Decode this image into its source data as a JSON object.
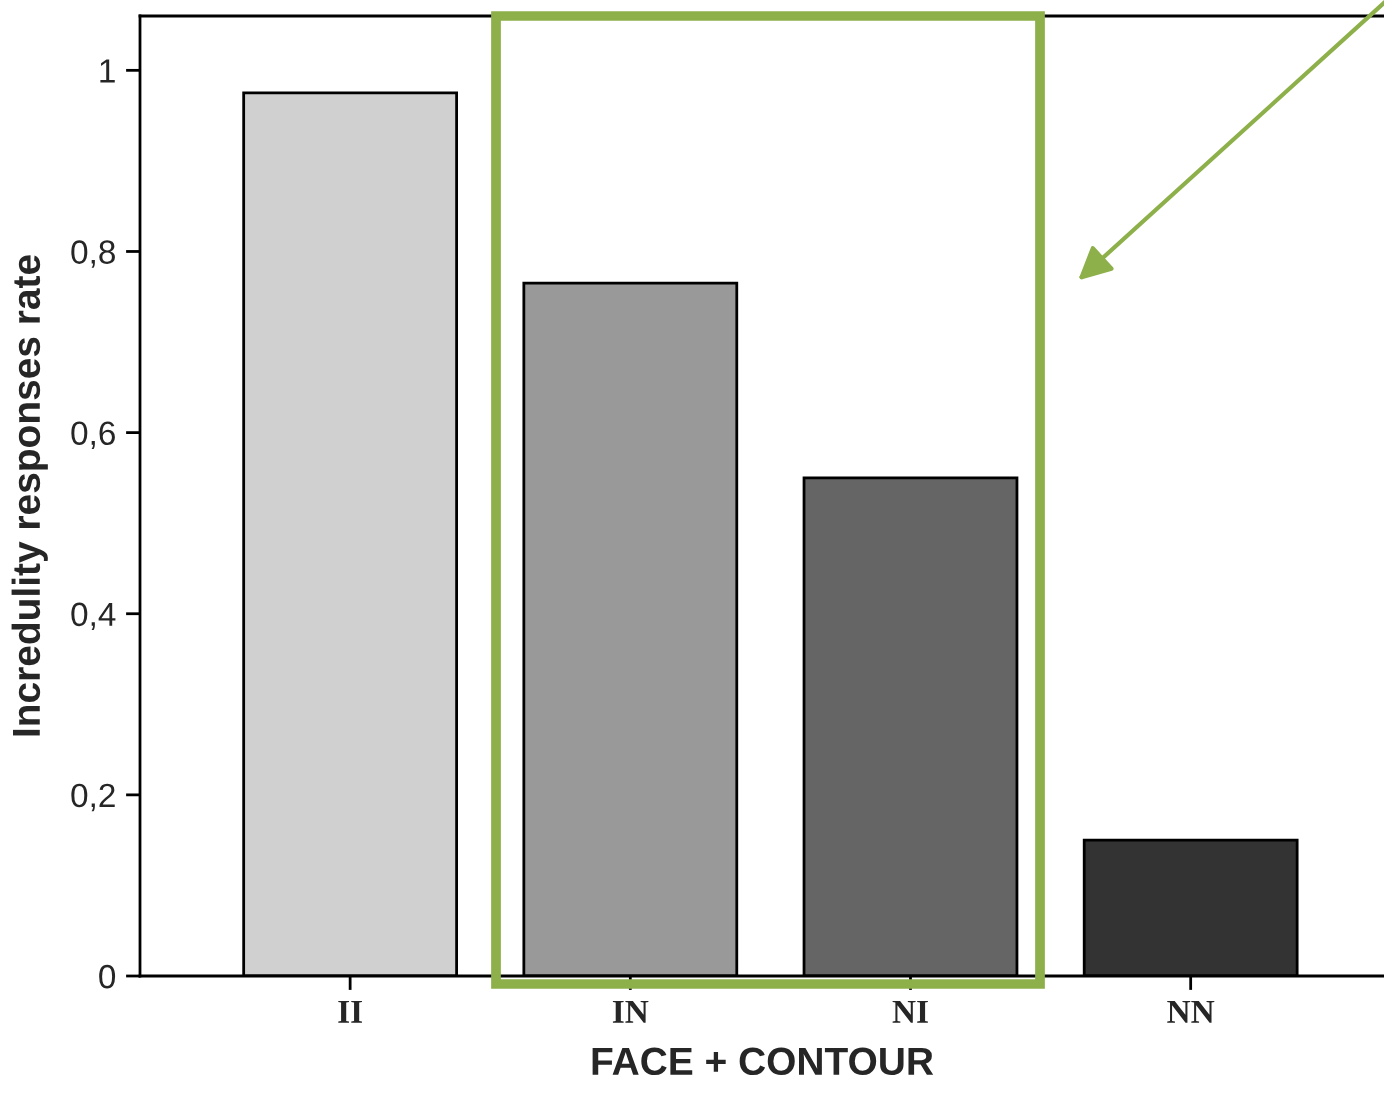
{
  "chart_data": {
    "type": "bar",
    "xlabel": "FACE + CONTOUR",
    "ylabel": "Incredulity responses rate",
    "categories": [
      "II",
      "IN",
      "NI",
      "NN"
    ],
    "values": [
      0.975,
      0.765,
      0.55,
      0.15
    ],
    "colors": [
      "#d0d0d0",
      "#999999",
      "#656565",
      "#333333"
    ],
    "ylim": [
      0,
      1.06
    ],
    "yticks": [
      0,
      {
        "value": 0.2,
        "label": "0,2"
      },
      {
        "value": 0.4,
        "label": "0,4"
      },
      {
        "value": 0.6,
        "label": "0,6"
      },
      {
        "value": 0.8,
        "label": "0,8"
      },
      1
    ],
    "grid": false,
    "legend": false
  }
}
